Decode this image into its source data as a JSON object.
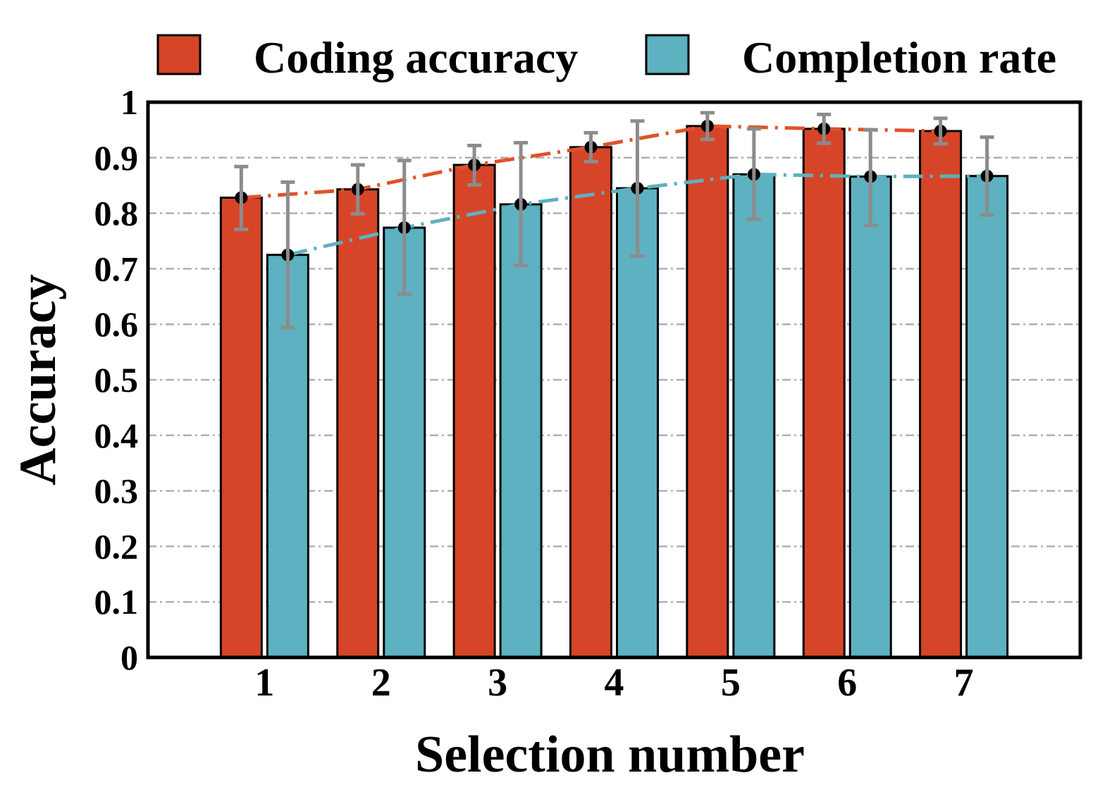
{
  "chart_data": {
    "type": "bar",
    "categories": [
      "1",
      "2",
      "3",
      "4",
      "5",
      "6",
      "7"
    ],
    "series": [
      {
        "name": "Coding accuracy",
        "color": "#D64528",
        "values": [
          0.828,
          0.843,
          0.887,
          0.919,
          0.957,
          0.952,
          0.948
        ],
        "error_low": [
          0.771,
          0.799,
          0.851,
          0.893,
          0.933,
          0.926,
          0.925
        ],
        "error_high": [
          0.884,
          0.887,
          0.922,
          0.945,
          0.981,
          0.978,
          0.971
        ],
        "line_color": "#E0522A"
      },
      {
        "name": "Completion rate",
        "color": "#5DB1C0",
        "values": [
          0.725,
          0.774,
          0.816,
          0.845,
          0.87,
          0.866,
          0.867
        ],
        "error_low": [
          0.594,
          0.654,
          0.706,
          0.723,
          0.789,
          0.778,
          0.797
        ],
        "error_high": [
          0.856,
          0.895,
          0.927,
          0.966,
          0.952,
          0.95,
          0.937
        ],
        "line_color": "#5DB1C0"
      }
    ],
    "xlabel": "Selection number",
    "ylabel": "Accuracy",
    "ylim": [
      0,
      1
    ],
    "yticks": [
      "0",
      "0.1",
      "0.2",
      "0.3",
      "0.4",
      "0.5",
      "0.6",
      "0.7",
      "0.8",
      "0.9",
      "1"
    ],
    "grid": true,
    "legend_position": "top",
    "error_bar_color": "#8C8C8C",
    "trend_lines": "dashed"
  }
}
